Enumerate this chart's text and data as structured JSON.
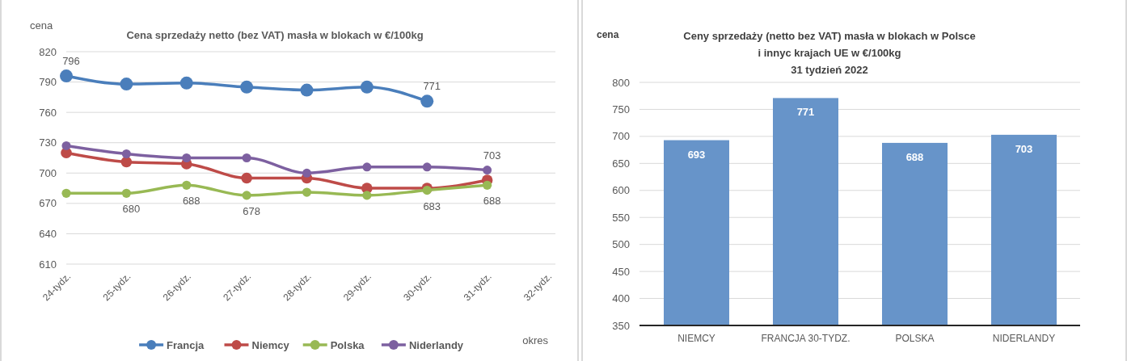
{
  "chart_data": [
    {
      "type": "line",
      "title": "Cena sprzedaży netto (bez VAT) masła w blokach w €/100kg",
      "ylabel": "cena",
      "xlabel": "okres",
      "categories": [
        "24-tydz.",
        "25-tydz.",
        "26-tydz.",
        "27-tydz.",
        "28-tydz.",
        "29-tydz.",
        "30-tydz.",
        "31-tydz.",
        "32-tydz."
      ],
      "series": [
        {
          "name": "Francja",
          "color": "#4a7ebb",
          "values": [
            796,
            788,
            789,
            785,
            782,
            785,
            771,
            null,
            null
          ],
          "value_labels": [
            "796",
            null,
            null,
            null,
            null,
            null,
            "771",
            null,
            null
          ]
        },
        {
          "name": "Niemcy",
          "color": "#be4b48",
          "values": [
            720,
            711,
            709,
            695,
            695,
            685,
            685,
            693,
            null
          ]
        },
        {
          "name": "Polska",
          "color": "#98b954",
          "values": [
            680,
            680,
            688,
            678,
            681,
            678,
            683,
            688,
            null
          ],
          "value_labels": [
            null,
            "680",
            "688",
            "678",
            null,
            null,
            "683",
            "688",
            null
          ]
        },
        {
          "name": "Niderlandy",
          "color": "#7d60a0",
          "values": [
            727,
            719,
            715,
            715,
            700,
            706,
            706,
            703,
            null
          ],
          "value_labels": [
            null,
            null,
            null,
            null,
            null,
            null,
            null,
            "703",
            null
          ]
        }
      ],
      "ylim": [
        610,
        820
      ],
      "yticks": [
        610,
        640,
        670,
        700,
        730,
        760,
        790,
        820
      ],
      "grid": "y",
      "legend": "bottom",
      "marker": "circle",
      "line_style": "solid"
    },
    {
      "type": "bar",
      "title": "Ceny sprzedaży (netto bez VAT) masła w blokach w Polsce\ni  innyc krajach UE w €/100kg\n31 tydzień 2022",
      "ylabel": "cena",
      "categories": [
        "NIEMCY",
        "FRANCJA 30-TYDZ.",
        "POLSKA",
        "NIDERLANDY"
      ],
      "values": [
        693,
        771,
        688,
        703
      ],
      "color": "#6794c9",
      "data_labels": true,
      "ylim": [
        350,
        800
      ],
      "yticks": [
        350,
        400,
        450,
        500,
        550,
        600,
        650,
        700,
        750,
        800
      ],
      "grid": "y"
    }
  ]
}
